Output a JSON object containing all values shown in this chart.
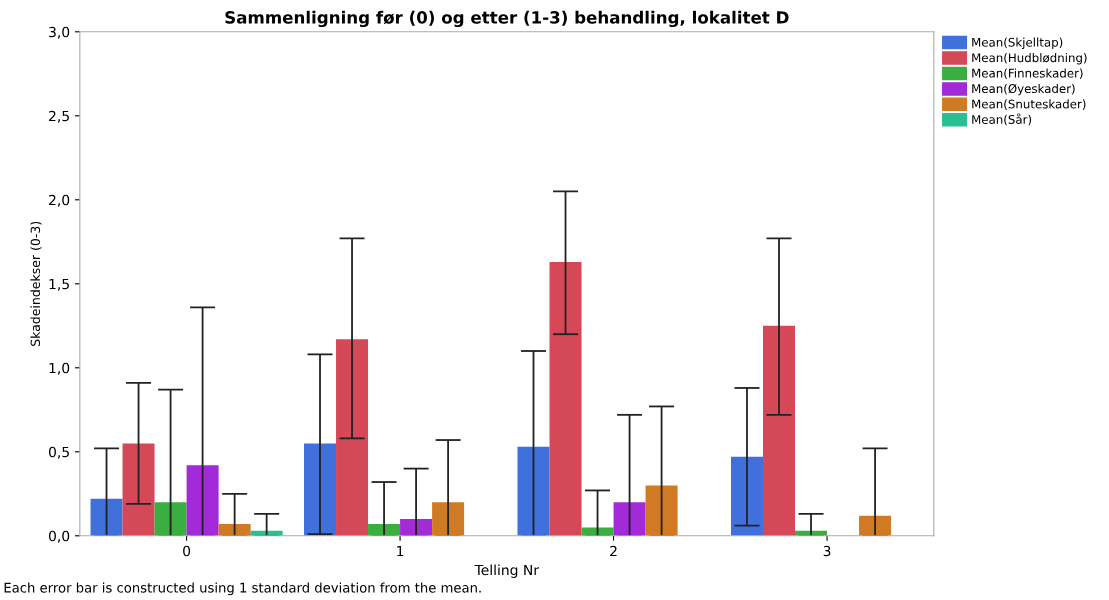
{
  "chart_data": {
    "type": "bar",
    "title": "Sammenligning før (0) og etter (1-3) behandling, lokalitet D",
    "xlabel": "Telling Nr",
    "ylabel": "Skadeindekser (0-3)",
    "annotations": [
      "Each error bar is constructed using 1 standard deviation from the mean."
    ],
    "categories": [
      "0",
      "1",
      "2",
      "3"
    ],
    "series": [
      {
        "name": "Mean(Skjelltap)",
        "color": "#4070dc",
        "values": [
          0.22,
          0.55,
          0.53,
          0.47
        ],
        "errors": [
          [
            0,
            0.52
          ],
          [
            0.01,
            1.08
          ],
          [
            0,
            1.1
          ],
          [
            0.06,
            0.88
          ]
        ]
      },
      {
        "name": "Mean(Hudblødning)",
        "color": "#d54858",
        "values": [
          0.55,
          1.17,
          1.63,
          1.25
        ],
        "errors": [
          [
            0.19,
            0.91
          ],
          [
            0.58,
            1.77
          ],
          [
            1.2,
            2.05
          ],
          [
            0.72,
            1.77
          ]
        ]
      },
      {
        "name": "Mean(Finneskader)",
        "color": "#3aae40",
        "values": [
          0.2,
          0.07,
          0.05,
          0.03
        ],
        "errors": [
          [
            0,
            0.87
          ],
          [
            0,
            0.32
          ],
          [
            0,
            0.27
          ],
          [
            0,
            0.13
          ]
        ]
      },
      {
        "name": "Mean(Øyeskader)",
        "color": "#a22ad8",
        "values": [
          0.42,
          0.1,
          0.2,
          null
        ],
        "errors": [
          [
            0,
            1.36
          ],
          [
            0,
            0.4
          ],
          [
            0,
            0.72
          ],
          null
        ]
      },
      {
        "name": "Mean(Snuteskader)",
        "color": "#d07a24",
        "values": [
          0.07,
          0.2,
          0.3,
          0.12
        ],
        "errors": [
          [
            0,
            0.25
          ],
          [
            0,
            0.57
          ],
          [
            0,
            0.77
          ],
          [
            0,
            0.52
          ]
        ]
      },
      {
        "name": "Mean(Sår)",
        "color": "#28c092",
        "values": [
          0.03,
          null,
          null,
          null
        ],
        "errors": [
          [
            0,
            0.13
          ],
          null,
          null,
          null
        ]
      }
    ],
    "ylim": [
      0,
      3
    ],
    "yticks": [
      {
        "value": 0,
        "label": "0,0"
      },
      {
        "value": 0.5,
        "label": "0,5"
      },
      {
        "value": 1,
        "label": "1,0"
      },
      {
        "value": 1.5,
        "label": "1,5"
      },
      {
        "value": 2,
        "label": "2,0"
      },
      {
        "value": 2.5,
        "label": "2,5"
      },
      {
        "value": 3,
        "label": "3,0"
      }
    ],
    "grid": false,
    "legend": "top right"
  }
}
